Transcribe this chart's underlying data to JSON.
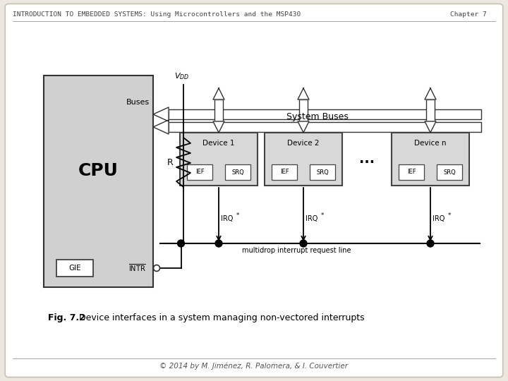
{
  "bg_color": "#ede8df",
  "slide_bg": "#ffffff",
  "border_color": "#c8c0b0",
  "header_text": "INTRODUCTION TO EMBEDDED SYSTEMS: Using Microcontrollers and the MSP430",
  "chapter_text": "Chapter 7",
  "footer_text": "© 2014 by M. Jiménez, R. Palomera, & I. Couvertier",
  "caption_bold": "Fig. 7.2",
  "caption_rest": "  Device interfaces in a system managing non-vectored interrupts",
  "cpu_label": "CPU",
  "gie_label": "GIE",
  "intr_label": "INTR",
  "buses_label": "Buses",
  "system_buses_label": "System Buses",
  "vdd_label": "V",
  "vdd_sub": "DD",
  "r_label": "R",
  "multidrop_label": "multidrop interrupt request line",
  "device_labels": [
    "Device 1",
    "Device 2",
    "Device n"
  ],
  "ief_label": "IEF",
  "srq_label": "SRQ",
  "irq_label": "IRQ",
  "irq_sup": "*",
  "dots_label": "...",
  "cpu_fill": "#d0d0d0",
  "device_fill": "#d8d8d8",
  "white_fill": "#ffffff",
  "line_color": "#000000",
  "text_color": "#000000",
  "sep_color": "#999999"
}
